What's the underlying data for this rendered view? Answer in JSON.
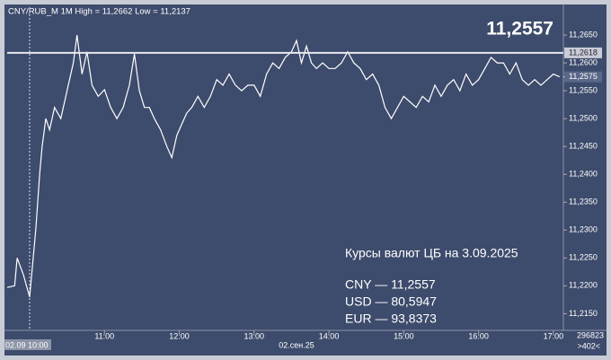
{
  "chart_data": {
    "type": "line",
    "title": "CNY/RUB_M 1M High = 11,2662 Low = 11,2137",
    "big_price": "11,2557",
    "x": [
      -18,
      -12,
      -10,
      -5,
      0,
      5,
      8,
      10,
      13,
      16,
      20,
      25,
      30,
      35,
      38,
      42,
      46,
      50,
      55,
      60,
      65,
      70,
      75,
      80,
      84,
      88,
      92,
      96,
      100,
      105,
      110,
      114,
      118,
      122,
      126,
      130,
      135,
      140,
      145,
      150,
      155,
      160,
      165,
      170,
      175,
      180,
      185,
      190,
      195,
      200,
      205,
      210,
      214,
      218,
      222,
      226,
      230,
      235,
      240,
      245,
      250,
      255,
      260,
      265,
      270,
      275,
      280,
      285,
      290,
      295,
      300,
      305,
      310,
      315,
      320,
      325,
      330,
      335,
      340,
      345,
      350,
      355,
      360,
      365,
      370,
      375,
      380,
      385,
      390,
      395,
      400,
      405,
      410,
      415,
      420,
      425
    ],
    "values": [
      11.2197,
      11.22,
      11.225,
      11.222,
      11.218,
      11.2302,
      11.24,
      11.245,
      11.25,
      11.248,
      11.252,
      11.25,
      11.255,
      11.26,
      11.265,
      11.258,
      11.262,
      11.256,
      11.254,
      11.2552,
      11.252,
      11.25,
      11.252,
      11.256,
      11.2616,
      11.255,
      11.252,
      11.252,
      11.25,
      11.248,
      11.245,
      11.243,
      11.247,
      11.249,
      11.251,
      11.252,
      11.254,
      11.252,
      11.254,
      11.257,
      11.256,
      11.258,
      11.256,
      11.255,
      11.256,
      11.256,
      11.254,
      11.258,
      11.26,
      11.259,
      11.261,
      11.262,
      11.264,
      11.26,
      11.263,
      11.26,
      11.259,
      11.26,
      11.259,
      11.259,
      11.26,
      11.262,
      11.26,
      11.259,
      11.257,
      11.258,
      11.256,
      11.252,
      11.25,
      11.252,
      11.254,
      11.253,
      11.252,
      11.254,
      11.253,
      11.256,
      11.254,
      11.256,
      11.257,
      11.255,
      11.258,
      11.256,
      11.257,
      11.259,
      11.261,
      11.26,
      11.26,
      11.258,
      11.26,
      11.257,
      11.256,
      11.257,
      11.256,
      11.257,
      11.258,
      11.2575
    ],
    "color": "#ffffff",
    "xlim": [
      -18,
      428
    ],
    "ylim": [
      11.212,
      11.27
    ],
    "xticks": [
      {
        "value": 60,
        "label": "11:00"
      },
      {
        "value": 120,
        "label": "12:00"
      },
      {
        "value": 180,
        "label": "13:00"
      },
      {
        "value": 240,
        "label": "14:00"
      },
      {
        "value": 300,
        "label": "15:00"
      },
      {
        "value": 360,
        "label": "16:00"
      },
      {
        "value": 420,
        "label": "17:00"
      }
    ],
    "yticks": [
      {
        "value": 11.265,
        "label": "11,2650"
      },
      {
        "value": 11.26,
        "label": "11,2600"
      },
      {
        "value": 11.255,
        "label": "11,2550"
      },
      {
        "value": 11.25,
        "label": "11,2500"
      },
      {
        "value": 11.245,
        "label": "11,2450"
      },
      {
        "value": 11.24,
        "label": "11,2400"
      },
      {
        "value": 11.235,
        "label": "11,2350"
      },
      {
        "value": 11.23,
        "label": "11,2300"
      },
      {
        "value": 11.225,
        "label": "11,2250"
      },
      {
        "value": 11.22,
        "label": "11,2200"
      },
      {
        "value": 11.215,
        "label": "11,2150"
      }
    ],
    "level_line": {
      "value": 11.2618,
      "label": "11,2618"
    },
    "last_price": {
      "value": 11.2575,
      "label": "11,2575"
    },
    "cursor": {
      "value": 0,
      "label": "02.09 10:00"
    },
    "date_label": "02.сен.25",
    "counter": "296823",
    "counter2": ">402<",
    "annotations": [
      "Курсы валют ЦБ на 3.09.2025",
      "CNY — 11,2557",
      "USD — 80,5947",
      "EUR — 93,8373"
    ]
  }
}
